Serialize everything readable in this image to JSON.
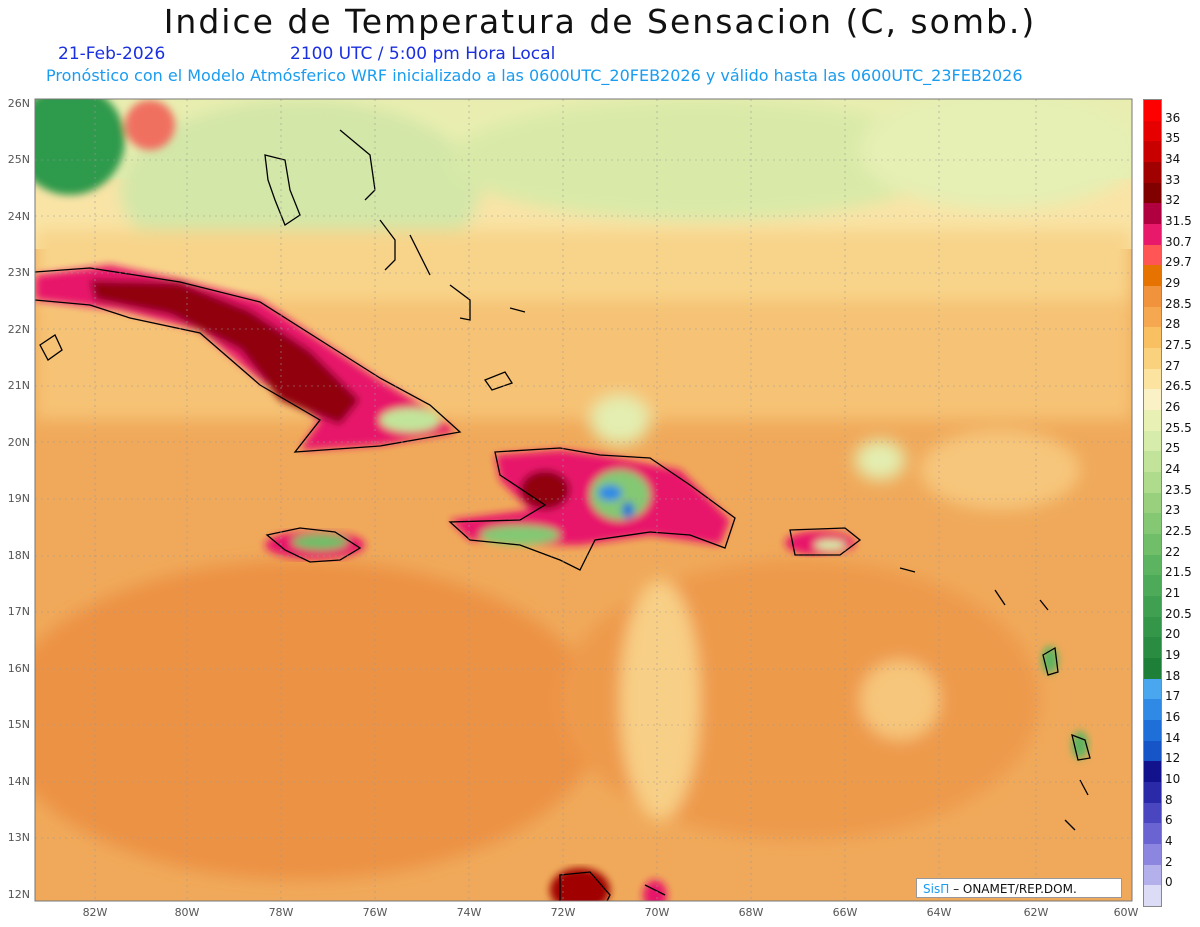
{
  "header": {
    "title": "Indice de Temperatura de Sensacion (C, somb.)",
    "date": "21-Feb-2026",
    "time": "2100 UTC / 5:00 pm Hora Local",
    "subtitle": "Pronóstico con el Modelo Atmósferico WRF inicializado a las 0600UTC_20FEB2026 y válido hasta las  0600UTC_23FEB2026"
  },
  "axes": {
    "lat_labels": [
      "26N",
      "25N",
      "24N",
      "23N",
      "22N",
      "21N",
      "20N",
      "19N",
      "18N",
      "17N",
      "16N",
      "15N",
      "14N",
      "13N",
      "12N"
    ],
    "lon_labels": [
      "82W",
      "80W",
      "78W",
      "76W",
      "74W",
      "72W",
      "70W",
      "68W",
      "66W",
      "64W",
      "62W",
      "60W"
    ]
  },
  "colorbar": {
    "levels": [
      "36",
      "35",
      "34",
      "33",
      "32",
      "31.5",
      "30.7",
      "29.7",
      "29",
      "28.5",
      "28",
      "27.5",
      "27",
      "26.5",
      "26",
      "25.5",
      "25",
      "24",
      "23.5",
      "23",
      "22.5",
      "22",
      "21.5",
      "21",
      "20.5",
      "20",
      "19",
      "18",
      "17",
      "16",
      "14",
      "12",
      "10",
      "8",
      "6",
      "4",
      "2",
      "0"
    ],
    "colors": [
      "#ff0000",
      "#e60000",
      "#c80000",
      "#a00000",
      "#800000",
      "#b00040",
      "#e8186a",
      "#ff5555",
      "#e67300",
      "#f0933c",
      "#f5a850",
      "#f8c060",
      "#fad27d",
      "#fce3a0",
      "#fbf1c6",
      "#e8f0b4",
      "#d6ecaa",
      "#c2e49a",
      "#aedc8c",
      "#98d07e",
      "#84c873",
      "#70be68",
      "#5cb460",
      "#4caa58",
      "#3ea050",
      "#339648",
      "#298c40",
      "#1e8038",
      "#49a7f0",
      "#2f8ae6",
      "#1f6fd8",
      "#1555c8",
      "#12128c",
      "#2a2aa8",
      "#4a46c0",
      "#6a64d2",
      "#8c86e0",
      "#b4b0ec",
      "#dcdcf6"
    ]
  },
  "credit": {
    "brand": "SisΠ",
    "text": "– ONAMET/REP.DOM."
  }
}
